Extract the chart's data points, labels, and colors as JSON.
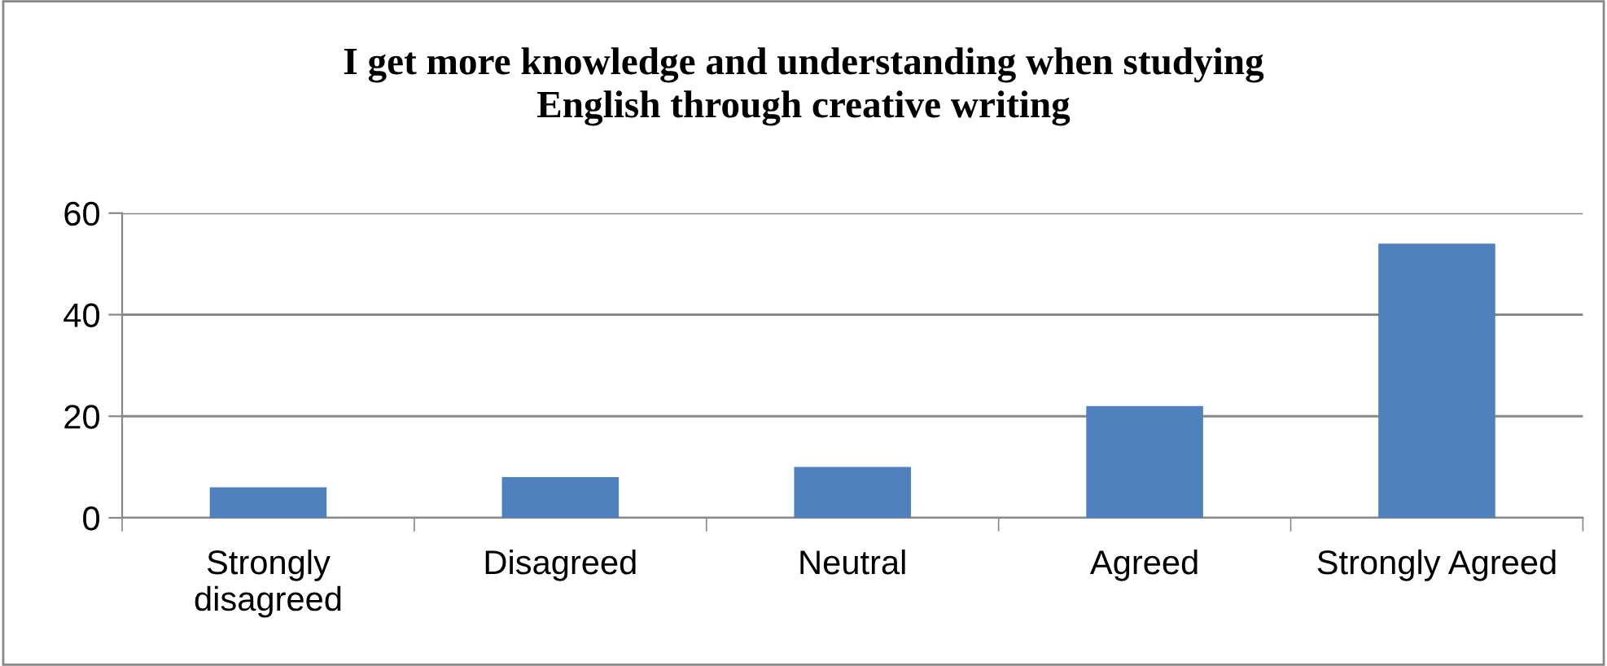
{
  "chart_data": {
    "type": "bar",
    "title": "I get more knowledge and understanding when studying\nEnglish through creative writing",
    "categories": [
      "Strongly\ndisagreed",
      "Disagreed",
      "Neutral",
      "Agreed",
      "Strongly Agreed"
    ],
    "values": [
      6,
      8,
      10,
      22,
      54
    ],
    "color": "#4f81bd",
    "ylim": [
      0,
      60
    ],
    "yticks": [
      0,
      20,
      40,
      60
    ],
    "grid": "y",
    "legend": false
  }
}
